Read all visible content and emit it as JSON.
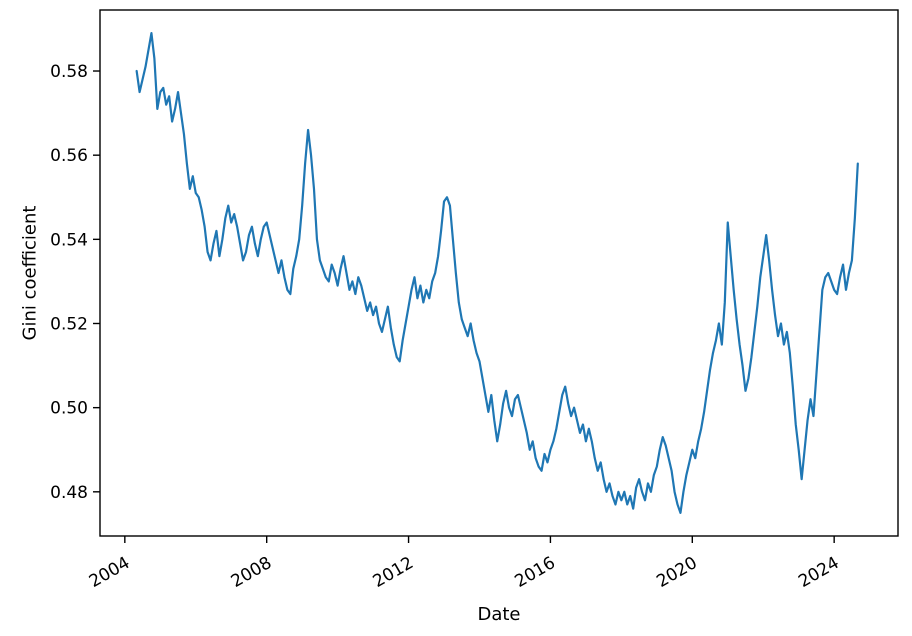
{
  "figure": {
    "background": "#ffffff"
  },
  "chart_data": {
    "type": "line",
    "title": "",
    "xlabel": "Date",
    "ylabel": "Gini coefficient",
    "legend": null,
    "grid": false,
    "line_color": "#1f77b4",
    "line_width": 2.2,
    "axis_color": "#000000",
    "xlim": [
      2003.3,
      2025.8
    ],
    "ylim": [
      0.4695,
      0.5945
    ],
    "x_ticks": [
      2004,
      2008,
      2012,
      2016,
      2020,
      2024
    ],
    "x_tick_labels": [
      "2004",
      "2008",
      "2012",
      "2016",
      "2020",
      "2024"
    ],
    "x_tick_rotation": -30,
    "y_ticks": [
      0.48,
      0.5,
      0.52,
      0.54,
      0.56,
      0.58
    ],
    "series": [
      {
        "name": "Gini coefficient",
        "x_start": 2004.3333,
        "x_step": 0.0833333,
        "y": [
          0.58,
          0.575,
          0.578,
          0.581,
          0.585,
          0.589,
          0.583,
          0.571,
          0.575,
          0.576,
          0.572,
          0.574,
          0.568,
          0.571,
          0.575,
          0.57,
          0.565,
          0.558,
          0.552,
          0.555,
          0.551,
          0.55,
          0.547,
          0.543,
          0.537,
          0.535,
          0.539,
          0.542,
          0.536,
          0.54,
          0.545,
          0.548,
          0.544,
          0.546,
          0.543,
          0.539,
          0.535,
          0.537,
          0.541,
          0.543,
          0.539,
          0.536,
          0.54,
          0.543,
          0.544,
          0.541,
          0.538,
          0.535,
          0.532,
          0.535,
          0.531,
          0.528,
          0.527,
          0.533,
          0.536,
          0.54,
          0.548,
          0.558,
          0.566,
          0.56,
          0.552,
          0.54,
          0.535,
          0.533,
          0.531,
          0.53,
          0.534,
          0.532,
          0.529,
          0.533,
          0.536,
          0.532,
          0.528,
          0.53,
          0.527,
          0.531,
          0.529,
          0.526,
          0.523,
          0.525,
          0.522,
          0.524,
          0.52,
          0.518,
          0.521,
          0.524,
          0.519,
          0.515,
          0.512,
          0.511,
          0.516,
          0.52,
          0.524,
          0.528,
          0.531,
          0.526,
          0.529,
          0.525,
          0.528,
          0.526,
          0.53,
          0.532,
          0.536,
          0.542,
          0.549,
          0.55,
          0.548,
          0.54,
          0.532,
          0.525,
          0.521,
          0.519,
          0.517,
          0.52,
          0.516,
          0.513,
          0.511,
          0.507,
          0.503,
          0.499,
          0.503,
          0.497,
          0.492,
          0.496,
          0.501,
          0.504,
          0.5,
          0.498,
          0.502,
          0.503,
          0.5,
          0.497,
          0.494,
          0.49,
          0.492,
          0.488,
          0.486,
          0.485,
          0.489,
          0.487,
          0.49,
          0.492,
          0.495,
          0.499,
          0.503,
          0.505,
          0.501,
          0.498,
          0.5,
          0.497,
          0.494,
          0.496,
          0.492,
          0.495,
          0.492,
          0.488,
          0.485,
          0.487,
          0.483,
          0.48,
          0.482,
          0.479,
          0.477,
          0.48,
          0.478,
          0.48,
          0.477,
          0.479,
          0.476,
          0.481,
          0.483,
          0.48,
          0.478,
          0.482,
          0.48,
          0.484,
          0.486,
          0.49,
          0.493,
          0.491,
          0.488,
          0.485,
          0.48,
          0.477,
          0.475,
          0.48,
          0.484,
          0.487,
          0.49,
          0.488,
          0.492,
          0.495,
          0.499,
          0.504,
          0.509,
          0.513,
          0.516,
          0.52,
          0.515,
          0.525,
          0.544,
          0.536,
          0.528,
          0.521,
          0.515,
          0.51,
          0.504,
          0.507,
          0.512,
          0.518,
          0.524,
          0.531,
          0.536,
          0.541,
          0.535,
          0.528,
          0.522,
          0.517,
          0.52,
          0.515,
          0.518,
          0.513,
          0.505,
          0.496,
          0.49,
          0.483,
          0.49,
          0.497,
          0.502,
          0.498,
          0.508,
          0.518,
          0.528,
          0.531,
          0.532,
          0.53,
          0.528,
          0.527,
          0.531,
          0.534,
          0.528,
          0.532,
          0.535,
          0.545,
          0.558
        ]
      }
    ]
  }
}
